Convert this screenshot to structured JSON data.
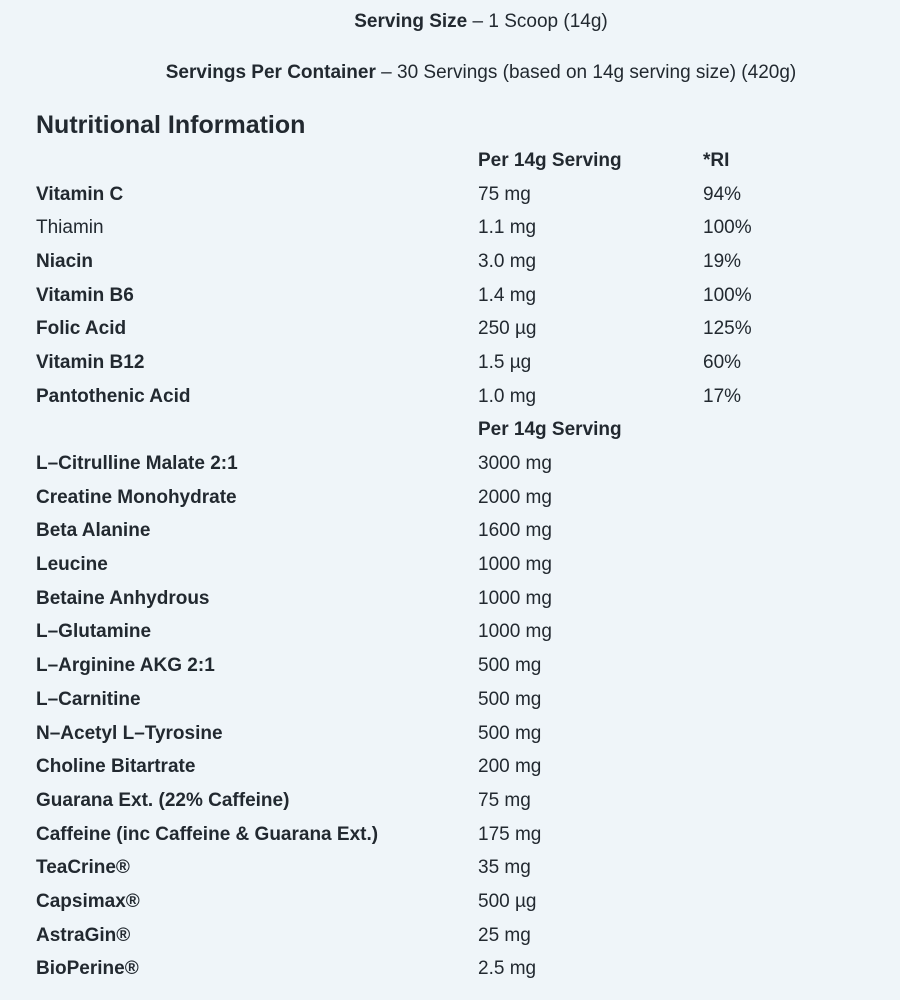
{
  "page": {
    "background_color": "#eff5f9",
    "text_color": "#222930"
  },
  "serving_info": {
    "serving_size": {
      "label": "Serving Size",
      "rest": "– 1 Scoop (14g)"
    },
    "servings_per_container": {
      "label": "Servings Per Container",
      "rest": "– 30 Servings (based on 14g serving size) (420g)"
    }
  },
  "section": {
    "title": "Nutritional Information"
  },
  "nutrition_table": {
    "vitamins_header": {
      "amount": "Per 14g Serving",
      "ri": "*RI"
    },
    "vitamins": [
      {
        "name": "Vitamin C",
        "bold": true,
        "amount": "75 mg",
        "ri": "94%"
      },
      {
        "name": "Thiamin",
        "bold": false,
        "amount": "1.1 mg",
        "ri": "100%"
      },
      {
        "name": "Niacin",
        "bold": true,
        "amount": "3.0 mg",
        "ri": "19%"
      },
      {
        "name": "Vitamin B6",
        "bold": true,
        "amount": "1.4 mg",
        "ri": "100%"
      },
      {
        "name": "Folic Acid",
        "bold": true,
        "amount": "250 µg",
        "ri": "125%"
      },
      {
        "name": "Vitamin B12",
        "bold": true,
        "amount": "1.5 µg",
        "ri": "60%"
      },
      {
        "name": "Pantothenic Acid",
        "bold": true,
        "amount": "1.0 mg",
        "ri": "17%"
      }
    ],
    "ingredients_header": {
      "amount": "Per 14g Serving"
    },
    "ingredients": [
      {
        "name": "L–Citrulline Malate 2:1",
        "bold": true,
        "amount": "3000 mg"
      },
      {
        "name": "Creatine Monohydrate",
        "bold": true,
        "amount": "2000 mg"
      },
      {
        "name": "Beta Alanine",
        "bold": true,
        "amount": "1600 mg"
      },
      {
        "name": "Leucine",
        "bold": true,
        "amount": "1000 mg"
      },
      {
        "name": "Betaine Anhydrous",
        "bold": true,
        "amount": "1000 mg"
      },
      {
        "name": "L–Glutamine",
        "bold": true,
        "amount": "1000 mg"
      },
      {
        "name": "L–Arginine AKG 2:1",
        "bold": true,
        "amount": "500 mg"
      },
      {
        "name": "L–Carnitine",
        "bold": true,
        "amount": "500 mg"
      },
      {
        "name": "N–Acetyl L–Tyrosine",
        "bold": true,
        "amount": "500 mg"
      },
      {
        "name": "Choline Bitartrate",
        "bold": true,
        "amount": "200 mg"
      },
      {
        "name": "Guarana Ext. (22% Caffeine)",
        "bold": true,
        "amount": "75 mg"
      },
      {
        "name": "Caffeine (inc Caffeine & Guarana Ext.)",
        "bold": true,
        "amount": "175 mg"
      },
      {
        "name": "TeaCrine®",
        "bold": true,
        "amount": "35 mg"
      },
      {
        "name": "Capsimax®",
        "bold": true,
        "amount": "500 µg"
      },
      {
        "name": "AstraGin®",
        "bold": true,
        "amount": "25 mg"
      },
      {
        "name": "BioPerine®",
        "bold": true,
        "amount": "2.5 mg"
      }
    ]
  }
}
